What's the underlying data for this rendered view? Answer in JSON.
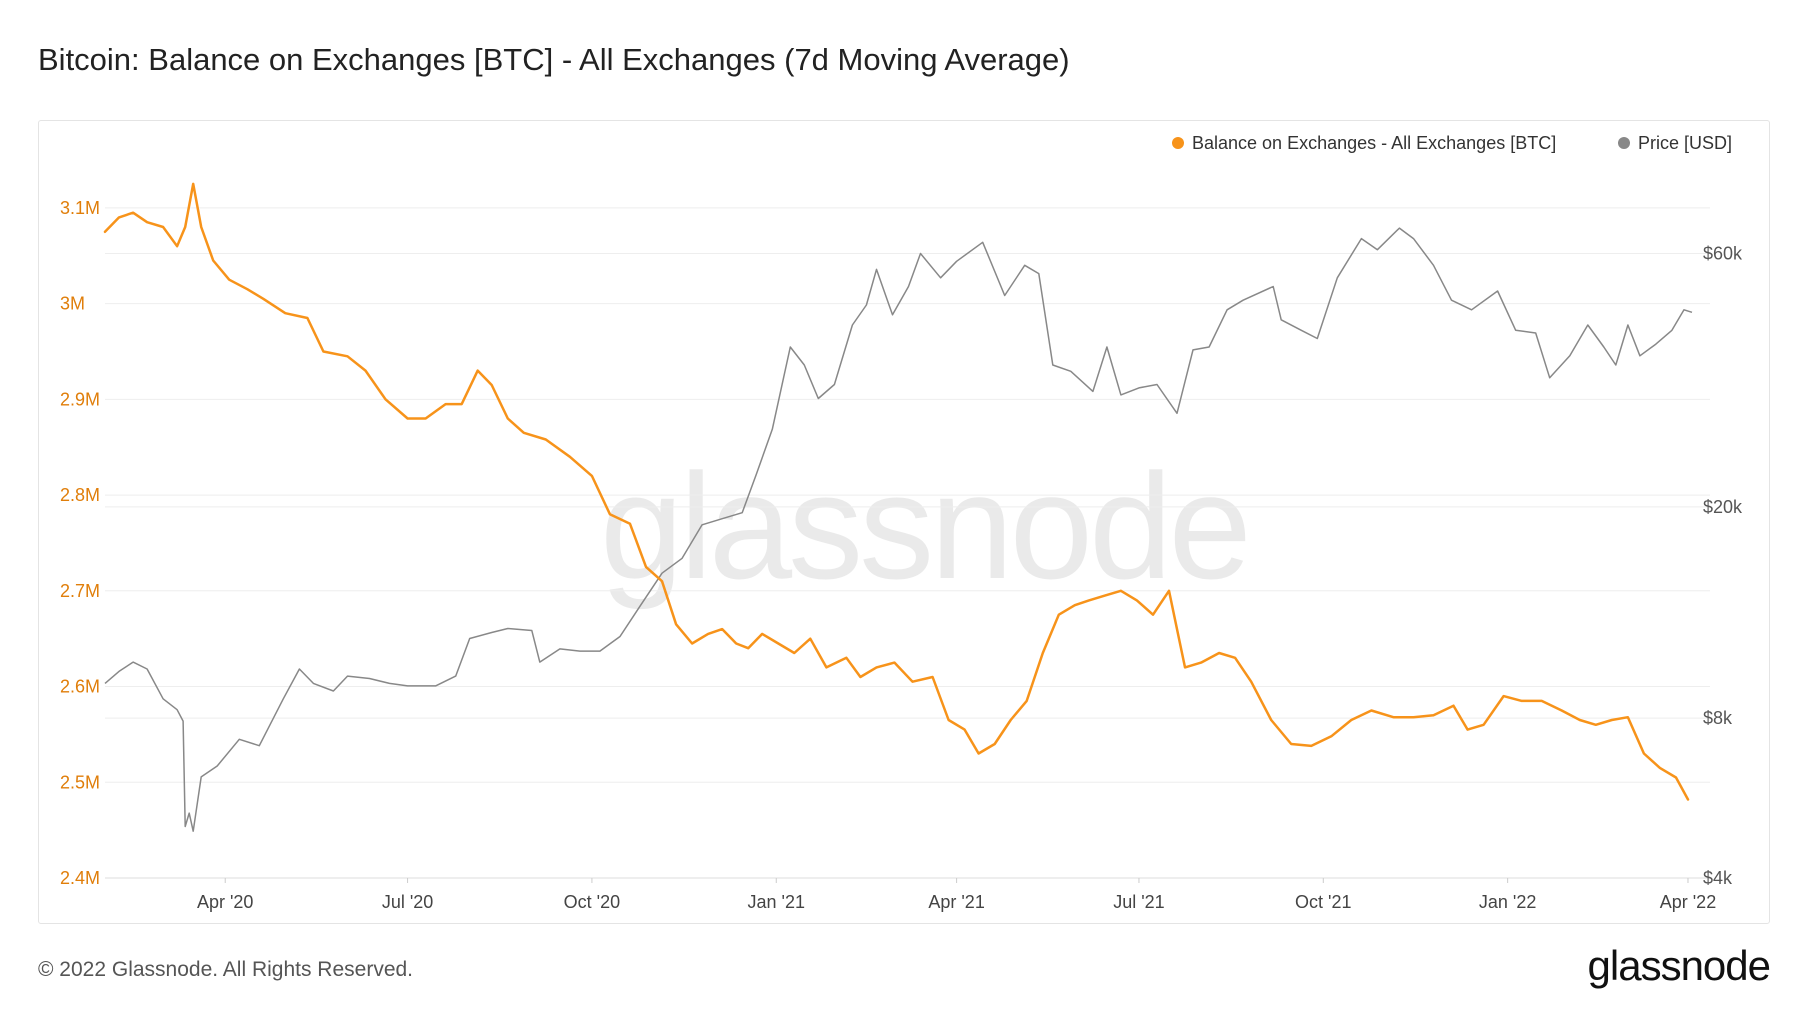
{
  "title": "Bitcoin: Balance on Exchanges [BTC] - All Exchanges (7d Moving Average)",
  "footer": {
    "copyright": "© 2022 Glassnode. All Rights Reserved.",
    "logo": "glassnode"
  },
  "watermark": "glassnode",
  "colors": {
    "balance": "#f7931a",
    "price": "#888888",
    "grid": "#eeeeee",
    "left_axis_text": "#e07e0a",
    "right_axis_text": "#555555"
  },
  "chart_data": {
    "type": "line",
    "title": "Bitcoin: Balance on Exchanges [BTC] - All Exchanges (7d Moving Average)",
    "legend_position": "top-right",
    "grid": true,
    "x_range": [
      "2020-02-01",
      "2022-04-07"
    ],
    "x_ticks": [
      {
        "date": "2020-04-01",
        "label": "Apr '20"
      },
      {
        "date": "2020-07-01",
        "label": "Jul '20"
      },
      {
        "date": "2020-10-01",
        "label": "Oct '20"
      },
      {
        "date": "2021-01-01",
        "label": "Jan '21"
      },
      {
        "date": "2021-04-01",
        "label": "Apr '21"
      },
      {
        "date": "2021-07-01",
        "label": "Jul '21"
      },
      {
        "date": "2021-10-01",
        "label": "Oct '21"
      },
      {
        "date": "2022-01-01",
        "label": "Jan '22"
      },
      {
        "date": "2022-04-01",
        "label": "Apr '22"
      }
    ],
    "y_left": {
      "ylim": [
        2400000,
        3150000
      ],
      "ticks": [
        {
          "value": 2400000,
          "label": "2.4M"
        },
        {
          "value": 2500000,
          "label": "2.5M"
        },
        {
          "value": 2600000,
          "label": "2.6M"
        },
        {
          "value": 2700000,
          "label": "2.7M"
        },
        {
          "value": 2800000,
          "label": "2.8M"
        },
        {
          "value": 2900000,
          "label": "2.9M"
        },
        {
          "value": 3000000,
          "label": "3M"
        },
        {
          "value": 3100000,
          "label": "3.1M"
        }
      ]
    },
    "y_right": {
      "scale": "log",
      "ylim": [
        4000,
        90000
      ],
      "ticks": [
        {
          "value": 4000,
          "label": "$4k"
        },
        {
          "value": 8000,
          "label": "$8k"
        },
        {
          "value": 20000,
          "label": "$20k"
        },
        {
          "value": 60000,
          "label": "$60k"
        }
      ]
    },
    "series": [
      {
        "name": "Balance on Exchanges - All Exchanges [BTC]",
        "axis": "left",
        "color": "#f7931a",
        "points": [
          [
            "2020-02-01",
            3075000
          ],
          [
            "2020-02-08",
            3090000
          ],
          [
            "2020-02-15",
            3095000
          ],
          [
            "2020-02-22",
            3085000
          ],
          [
            "2020-03-01",
            3080000
          ],
          [
            "2020-03-08",
            3060000
          ],
          [
            "2020-03-12",
            3080000
          ],
          [
            "2020-03-16",
            3125000
          ],
          [
            "2020-03-20",
            3080000
          ],
          [
            "2020-03-26",
            3045000
          ],
          [
            "2020-04-03",
            3025000
          ],
          [
            "2020-04-12",
            3015000
          ],
          [
            "2020-04-20",
            3005000
          ],
          [
            "2020-05-01",
            2990000
          ],
          [
            "2020-05-12",
            2985000
          ],
          [
            "2020-05-20",
            2950000
          ],
          [
            "2020-06-01",
            2945000
          ],
          [
            "2020-06-10",
            2930000
          ],
          [
            "2020-06-20",
            2900000
          ],
          [
            "2020-07-01",
            2880000
          ],
          [
            "2020-07-10",
            2880000
          ],
          [
            "2020-07-20",
            2895000
          ],
          [
            "2020-07-28",
            2895000
          ],
          [
            "2020-08-05",
            2930000
          ],
          [
            "2020-08-12",
            2915000
          ],
          [
            "2020-08-20",
            2880000
          ],
          [
            "2020-08-28",
            2865000
          ],
          [
            "2020-09-08",
            2858000
          ],
          [
            "2020-09-20",
            2840000
          ],
          [
            "2020-10-01",
            2820000
          ],
          [
            "2020-10-10",
            2780000
          ],
          [
            "2020-10-20",
            2770000
          ],
          [
            "2020-10-28",
            2725000
          ],
          [
            "2020-11-05",
            2710000
          ],
          [
            "2020-11-12",
            2665000
          ],
          [
            "2020-11-20",
            2645000
          ],
          [
            "2020-11-28",
            2655000
          ],
          [
            "2020-12-05",
            2660000
          ],
          [
            "2020-12-12",
            2645000
          ],
          [
            "2020-12-18",
            2640000
          ],
          [
            "2020-12-25",
            2655000
          ],
          [
            "2021-01-02",
            2645000
          ],
          [
            "2021-01-10",
            2635000
          ],
          [
            "2021-01-18",
            2650000
          ],
          [
            "2021-01-26",
            2620000
          ],
          [
            "2021-02-05",
            2630000
          ],
          [
            "2021-02-12",
            2610000
          ],
          [
            "2021-02-20",
            2620000
          ],
          [
            "2021-03-01",
            2625000
          ],
          [
            "2021-03-10",
            2605000
          ],
          [
            "2021-03-20",
            2610000
          ],
          [
            "2021-03-28",
            2565000
          ],
          [
            "2021-04-05",
            2555000
          ],
          [
            "2021-04-12",
            2530000
          ],
          [
            "2021-04-20",
            2540000
          ],
          [
            "2021-04-28",
            2565000
          ],
          [
            "2021-05-06",
            2585000
          ],
          [
            "2021-05-14",
            2635000
          ],
          [
            "2021-05-22",
            2675000
          ],
          [
            "2021-05-30",
            2685000
          ],
          [
            "2021-06-06",
            2690000
          ],
          [
            "2021-06-14",
            2695000
          ],
          [
            "2021-06-22",
            2700000
          ],
          [
            "2021-06-30",
            2690000
          ],
          [
            "2021-07-08",
            2675000
          ],
          [
            "2021-07-16",
            2700000
          ],
          [
            "2021-07-24",
            2620000
          ],
          [
            "2021-08-01",
            2625000
          ],
          [
            "2021-08-10",
            2635000
          ],
          [
            "2021-08-18",
            2630000
          ],
          [
            "2021-08-26",
            2605000
          ],
          [
            "2021-09-05",
            2565000
          ],
          [
            "2021-09-15",
            2540000
          ],
          [
            "2021-09-25",
            2538000
          ],
          [
            "2021-10-05",
            2548000
          ],
          [
            "2021-10-15",
            2565000
          ],
          [
            "2021-10-25",
            2575000
          ],
          [
            "2021-11-05",
            2568000
          ],
          [
            "2021-11-15",
            2568000
          ],
          [
            "2021-11-25",
            2570000
          ],
          [
            "2021-12-05",
            2580000
          ],
          [
            "2021-12-12",
            2555000
          ],
          [
            "2021-12-20",
            2560000
          ],
          [
            "2021-12-30",
            2590000
          ],
          [
            "2022-01-08",
            2585000
          ],
          [
            "2022-01-18",
            2585000
          ],
          [
            "2022-01-28",
            2575000
          ],
          [
            "2022-02-06",
            2565000
          ],
          [
            "2022-02-14",
            2560000
          ],
          [
            "2022-02-22",
            2565000
          ],
          [
            "2022-03-02",
            2568000
          ],
          [
            "2022-03-10",
            2530000
          ],
          [
            "2022-03-18",
            2515000
          ],
          [
            "2022-03-26",
            2505000
          ],
          [
            "2022-04-01",
            2482000
          ]
        ]
      },
      {
        "name": "Price [USD]",
        "axis": "right",
        "color": "#888888",
        "points": [
          [
            "2020-02-01",
            9300
          ],
          [
            "2020-02-08",
            9800
          ],
          [
            "2020-02-15",
            10200
          ],
          [
            "2020-02-22",
            9900
          ],
          [
            "2020-03-01",
            8700
          ],
          [
            "2020-03-08",
            8300
          ],
          [
            "2020-03-11",
            7900
          ],
          [
            "2020-03-12",
            5000
          ],
          [
            "2020-03-14",
            5300
          ],
          [
            "2020-03-16",
            4900
          ],
          [
            "2020-03-20",
            6200
          ],
          [
            "2020-03-28",
            6500
          ],
          [
            "2020-04-08",
            7300
          ],
          [
            "2020-04-18",
            7100
          ],
          [
            "2020-04-30",
            8700
          ],
          [
            "2020-05-08",
            9900
          ],
          [
            "2020-05-15",
            9300
          ],
          [
            "2020-05-25",
            9000
          ],
          [
            "2020-06-01",
            9600
          ],
          [
            "2020-06-12",
            9500
          ],
          [
            "2020-06-22",
            9300
          ],
          [
            "2020-07-01",
            9200
          ],
          [
            "2020-07-15",
            9200
          ],
          [
            "2020-07-25",
            9600
          ],
          [
            "2020-08-01",
            11300
          ],
          [
            "2020-08-12",
            11600
          ],
          [
            "2020-08-20",
            11800
          ],
          [
            "2020-09-01",
            11700
          ],
          [
            "2020-09-05",
            10200
          ],
          [
            "2020-09-15",
            10800
          ],
          [
            "2020-09-25",
            10700
          ],
          [
            "2020-10-05",
            10700
          ],
          [
            "2020-10-15",
            11400
          ],
          [
            "2020-10-25",
            13000
          ],
          [
            "2020-11-05",
            15000
          ],
          [
            "2020-11-15",
            16000
          ],
          [
            "2020-11-25",
            18500
          ],
          [
            "2020-12-05",
            19000
          ],
          [
            "2020-12-15",
            19500
          ],
          [
            "2020-12-22",
            23000
          ],
          [
            "2020-12-30",
            28000
          ],
          [
            "2021-01-08",
            40000
          ],
          [
            "2021-01-15",
            37000
          ],
          [
            "2021-01-22",
            32000
          ],
          [
            "2021-01-30",
            34000
          ],
          [
            "2021-02-08",
            44000
          ],
          [
            "2021-02-15",
            48000
          ],
          [
            "2021-02-20",
            56000
          ],
          [
            "2021-02-28",
            46000
          ],
          [
            "2021-03-08",
            52000
          ],
          [
            "2021-03-14",
            60000
          ],
          [
            "2021-03-24",
            54000
          ],
          [
            "2021-04-01",
            58000
          ],
          [
            "2021-04-14",
            63000
          ],
          [
            "2021-04-25",
            50000
          ],
          [
            "2021-05-05",
            57000
          ],
          [
            "2021-05-12",
            55000
          ],
          [
            "2021-05-19",
            37000
          ],
          [
            "2021-05-28",
            36000
          ],
          [
            "2021-06-08",
            33000
          ],
          [
            "2021-06-15",
            40000
          ],
          [
            "2021-06-22",
            32500
          ],
          [
            "2021-07-01",
            33500
          ],
          [
            "2021-07-10",
            34000
          ],
          [
            "2021-07-20",
            30000
          ],
          [
            "2021-07-28",
            39500
          ],
          [
            "2021-08-05",
            40000
          ],
          [
            "2021-08-14",
            47000
          ],
          [
            "2021-08-22",
            49000
          ],
          [
            "2021-09-06",
            52000
          ],
          [
            "2021-09-10",
            45000
          ],
          [
            "2021-09-20",
            43000
          ],
          [
            "2021-09-28",
            41500
          ],
          [
            "2021-10-08",
            54000
          ],
          [
            "2021-10-20",
            64000
          ],
          [
            "2021-10-28",
            61000
          ],
          [
            "2021-11-08",
            67000
          ],
          [
            "2021-11-15",
            64000
          ],
          [
            "2021-11-25",
            57000
          ],
          [
            "2021-12-04",
            49000
          ],
          [
            "2021-12-14",
            47000
          ],
          [
            "2021-12-27",
            51000
          ],
          [
            "2022-01-05",
            43000
          ],
          [
            "2022-01-15",
            42500
          ],
          [
            "2022-01-22",
            35000
          ],
          [
            "2022-02-01",
            38500
          ],
          [
            "2022-02-10",
            44000
          ],
          [
            "2022-02-18",
            40000
          ],
          [
            "2022-02-24",
            37000
          ],
          [
            "2022-03-02",
            44000
          ],
          [
            "2022-03-08",
            38500
          ],
          [
            "2022-03-16",
            40500
          ],
          [
            "2022-03-24",
            43000
          ],
          [
            "2022-03-30",
            47000
          ],
          [
            "2022-04-03",
            46500
          ]
        ]
      }
    ]
  }
}
